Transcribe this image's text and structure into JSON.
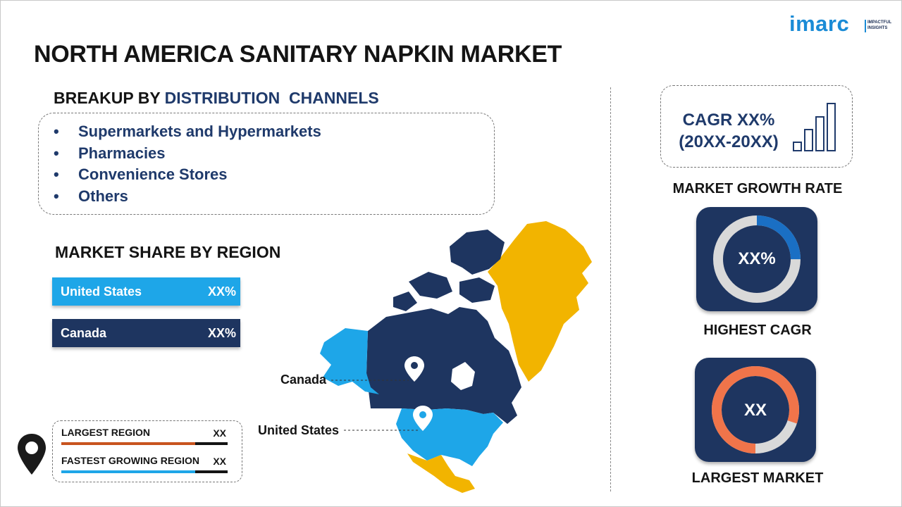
{
  "logo": {
    "name": "imarc",
    "tagline_1": "IMPACTFUL",
    "tagline_2": "INSIGHTS"
  },
  "title": "NORTH AMERICA SANITARY NAPKIN MARKET",
  "distribution": {
    "heading_prefix": "BREAKUP BY",
    "heading_accent": "DISTRIBUTION  CHANNELS",
    "items": [
      "Supermarkets and Hypermarkets",
      "Pharmacies",
      "Convenience Stores",
      "Others"
    ]
  },
  "region_share": {
    "heading": "MARKET SHARE BY REGION",
    "bars": [
      {
        "label": "United States",
        "value": "XX%",
        "color": "#1ea6e8"
      },
      {
        "label": "Canada",
        "value": "XX%",
        "color": "#1e3560"
      }
    ]
  },
  "legend": {
    "largest": {
      "label": "LARGEST REGION",
      "value": "XX",
      "color": "#c8541f"
    },
    "fastest": {
      "label": "FASTEST GROWING REGION",
      "value": "XX",
      "color": "#1ea6e8"
    }
  },
  "map": {
    "labels": {
      "canada": "Canada",
      "us": "United States"
    },
    "colors": {
      "canada": "#1e3560",
      "us": "#1ea6e8",
      "alaska": "#1ea6e8",
      "greenland": "#f2b400",
      "mexico": "#f2b400"
    }
  },
  "cagr": {
    "line1": "CAGR XX%",
    "line2": "(20XX-20XX)",
    "label": "MARKET GROWTH RATE"
  },
  "highest_cagr": {
    "value": "XX%",
    "label": "HIGHEST CAGR",
    "card_color": "#1e3560",
    "ring_color": "#1a6fc4",
    "track_color": "#d9d9d9"
  },
  "largest_market": {
    "value": "XX",
    "label": "LARGEST MARKET",
    "card_color": "#1e3560",
    "ring_color": "#f0744a",
    "track_color": "#d9d9d9"
  }
}
